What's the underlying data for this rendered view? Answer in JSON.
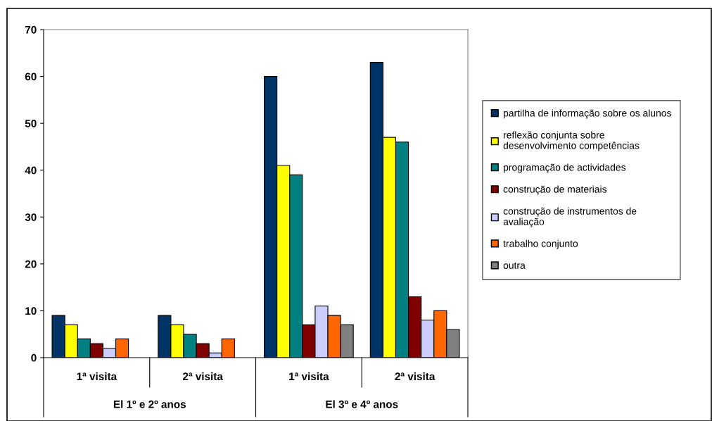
{
  "chart_data": {
    "type": "bar",
    "categories": [
      "1ª visita",
      "2ª visita",
      "1ª visita",
      "2ª visita"
    ],
    "annotations": [
      "El 1º e 2º anos",
      "El 3º e 4º anos"
    ],
    "series": [
      {
        "name": "partilha de informação sobre os alunos",
        "color": "#003366",
        "values": [
          9,
          9,
          60,
          63
        ]
      },
      {
        "name": "reflexão conjunta sobre\ndesenvolvimento competências",
        "color": "#ffff00",
        "values": [
          7,
          7,
          41,
          47
        ]
      },
      {
        "name": "programação de actividades",
        "color": "#008080",
        "values": [
          4,
          5,
          39,
          46
        ]
      },
      {
        "name": "construção de materiais",
        "color": "#800000",
        "values": [
          3,
          3,
          7,
          13
        ]
      },
      {
        "name": "construção de instrumentos de\navaliação",
        "color": "#ccccff",
        "values": [
          2,
          1,
          11,
          8
        ]
      },
      {
        "name": "trabalho conjunto",
        "color": "#ff6600",
        "values": [
          4,
          4,
          9,
          10
        ]
      },
      {
        "name": "outra",
        "color": "#808080",
        "values": [
          null,
          null,
          7,
          6
        ]
      }
    ],
    "ylim": [
      0,
      70
    ],
    "yticks": [
      0,
      10,
      20,
      30,
      40,
      50,
      60,
      70
    ],
    "grid": false,
    "legend": "right"
  }
}
